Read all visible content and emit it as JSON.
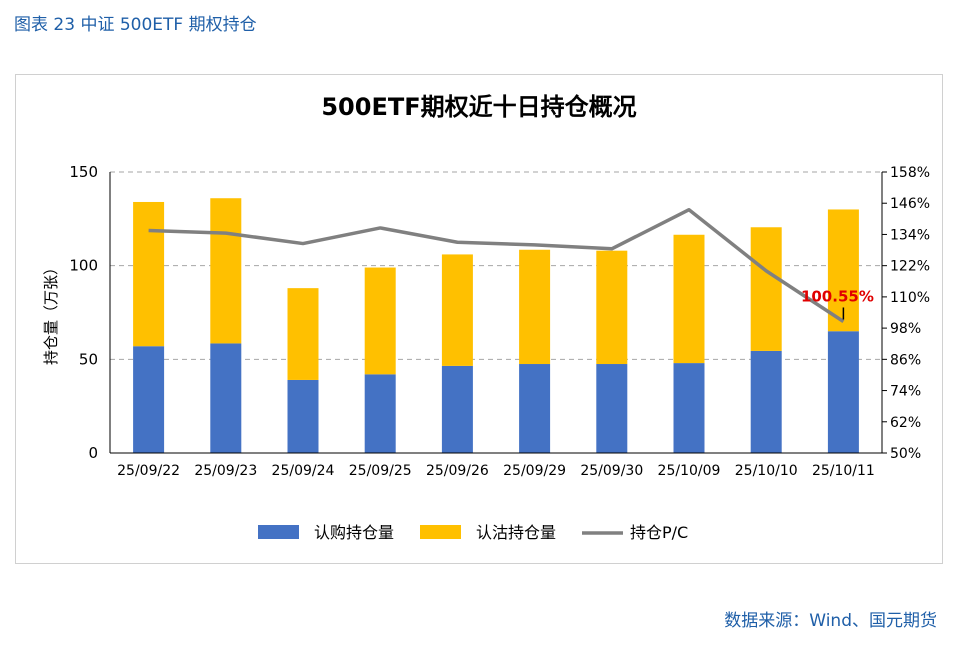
{
  "figure_label": "图表 23 中证 500ETF 期权持仓",
  "source_text": "数据来源：Wind、国元期货",
  "colors": {
    "call": "#4472c4",
    "put": "#ffc000",
    "pc_line": "#808080",
    "annotation": "#e00000",
    "header": "#1f5fa8"
  },
  "chart_data": {
    "type": "bar",
    "stacked": true,
    "title": "500ETF期权近十日持仓概况",
    "ylabel": "持仓量（万张）",
    "ylim": [
      0,
      150
    ],
    "yticks": [
      "0",
      "50",
      "100",
      "150"
    ],
    "y2lim": [
      50,
      158
    ],
    "y2ticks": [
      "50%",
      "62%",
      "74%",
      "86%",
      "98%",
      "110%",
      "122%",
      "134%",
      "146%",
      "158%"
    ],
    "categories": [
      "25/09/22",
      "25/09/23",
      "25/09/24",
      "25/09/25",
      "25/09/26",
      "25/09/29",
      "25/09/30",
      "25/10/09",
      "25/10/10",
      "25/10/11"
    ],
    "series": [
      {
        "name": "认购持仓量",
        "type": "bar",
        "axis": "left",
        "values": [
          57,
          58.5,
          39,
          42,
          46.5,
          47.5,
          47.5,
          48,
          54.5,
          65
        ]
      },
      {
        "name": "认沽持仓量",
        "type": "bar",
        "axis": "left",
        "values": [
          77,
          77.5,
          49,
          57,
          59.5,
          61,
          60.5,
          68.5,
          66,
          65
        ]
      },
      {
        "name": "持仓P/C",
        "type": "line",
        "axis": "right",
        "values": [
          135.5,
          134.5,
          130.5,
          136.5,
          131,
          130,
          128.5,
          143.5,
          120,
          100.55
        ]
      }
    ],
    "annotation": {
      "text": "100.55%",
      "category": "25/10/11"
    },
    "legend_position": "bottom"
  }
}
